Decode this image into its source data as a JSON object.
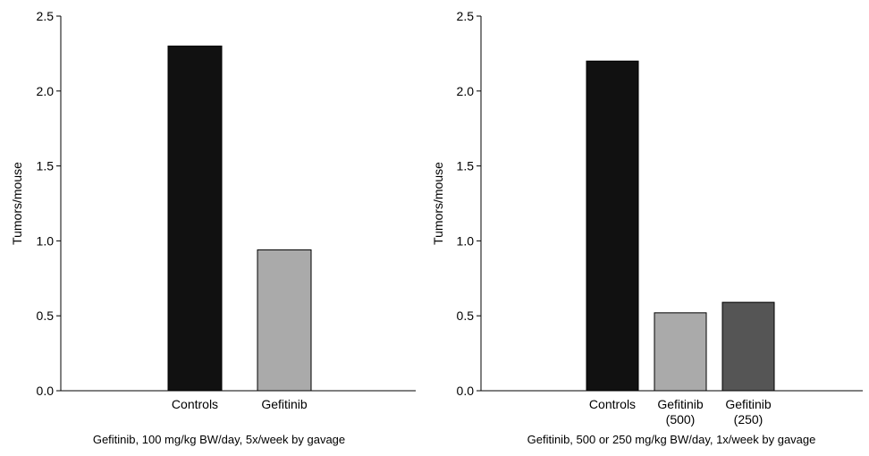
{
  "chart_data": [
    {
      "type": "bar",
      "categories": [
        [
          "Controls"
        ],
        [
          "Gefitinib"
        ]
      ],
      "values": [
        2.3,
        0.94
      ],
      "colors": [
        "#111111",
        "#aaaaaa"
      ],
      "ylabel": "Tumors/mouse",
      "ylim": [
        0,
        2.5
      ],
      "yticks": [
        "0.0",
        "0.5",
        "1.0",
        "1.5",
        "2.0",
        "2.5"
      ],
      "caption": "Gefitinib, 100 mg/kg BW/day, 5x/week by gavage",
      "grid": false
    },
    {
      "type": "bar",
      "categories": [
        [
          "Controls"
        ],
        [
          "Gefitinib",
          "(500)"
        ],
        [
          "Gefitinib",
          "(250)"
        ]
      ],
      "values": [
        2.2,
        0.52,
        0.59
      ],
      "colors": [
        "#111111",
        "#aaaaaa",
        "#555555"
      ],
      "ylabel": "Tumors/mouse",
      "ylim": [
        0,
        2.5
      ],
      "yticks": [
        "0.0",
        "0.5",
        "1.0",
        "1.5",
        "2.0",
        "2.5"
      ],
      "caption": "Gefitinib, 500 or 250 mg/kg BW/day, 1x/week by gavage",
      "grid": false
    }
  ]
}
